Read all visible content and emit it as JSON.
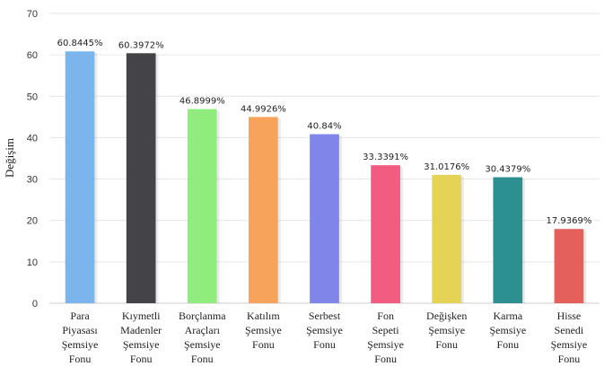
{
  "chart_data": {
    "type": "bar",
    "title": "",
    "xlabel": "",
    "ylabel": "Değişim",
    "ylim": [
      0,
      70
    ],
    "yticks": [
      0,
      10,
      20,
      30,
      40,
      50,
      60,
      70
    ],
    "grid": true,
    "legend": "none",
    "categories": [
      [
        "Para",
        "Piyasası",
        "Şemsiye",
        "Fonu"
      ],
      [
        "Kıymetli",
        "Madenler",
        "Şemsiye",
        "Fonu"
      ],
      [
        "Borçlanma",
        "Araçları",
        "Şemsiye",
        "Fonu"
      ],
      [
        "Katılım",
        "Şemsiye",
        "Fonu"
      ],
      [
        "Serbest",
        "Şemsiye",
        "Fonu"
      ],
      [
        "Fon",
        "Sepeti",
        "Şemsiye",
        "Fonu"
      ],
      [
        "Değişken",
        "Şemsiye",
        "Fonu"
      ],
      [
        "Karma",
        "Şemsiye",
        "Fonu"
      ],
      [
        "Hisse",
        "Senedi",
        "Şemsiye",
        "Fonu"
      ]
    ],
    "values": [
      60.8445,
      60.3972,
      46.8999,
      44.9926,
      40.84,
      33.3391,
      31.0176,
      30.4379,
      17.9369
    ],
    "value_labels": [
      "60.8445%",
      "60.3972%",
      "46.8999%",
      "44.9926%",
      "40.84%",
      "33.3391%",
      "31.0176%",
      "30.4379%",
      "17.9369%"
    ],
    "colors": [
      "#7cb5ec",
      "#434348",
      "#90ed7d",
      "#f7a35c",
      "#8085e9",
      "#f15c80",
      "#e4d354",
      "#2b908f",
      "#e4605a"
    ]
  }
}
